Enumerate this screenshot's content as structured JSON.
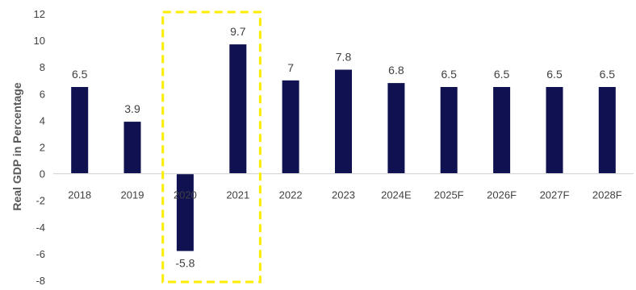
{
  "chart_data": {
    "type": "bar",
    "categories": [
      "2018",
      "2019",
      "2020",
      "2021",
      "2022",
      "2023",
      "2024E",
      "2025F",
      "2026F",
      "2027F",
      "2028F"
    ],
    "values": [
      6.5,
      3.9,
      -5.8,
      9.7,
      7,
      7.8,
      6.8,
      6.5,
      6.5,
      6.5,
      6.5
    ],
    "data_labels": [
      "6.5",
      "3.9",
      "-5.8",
      "9.7",
      "7",
      "7.8",
      "6.8",
      "6.5",
      "6.5",
      "6.5",
      "6.5"
    ],
    "ylabel": "Real GDP in Percentage",
    "ylim": [
      -8,
      12
    ],
    "yticks": [
      -8,
      -6,
      -4,
      -2,
      0,
      2,
      4,
      6,
      8,
      10,
      12
    ],
    "grid": false,
    "bar_color": "#0f1150",
    "axis_color": "#d9d9d9",
    "highlight": {
      "categories": [
        "2020",
        "2021"
      ],
      "style": "dashed-box",
      "color": "#ffed00"
    }
  }
}
